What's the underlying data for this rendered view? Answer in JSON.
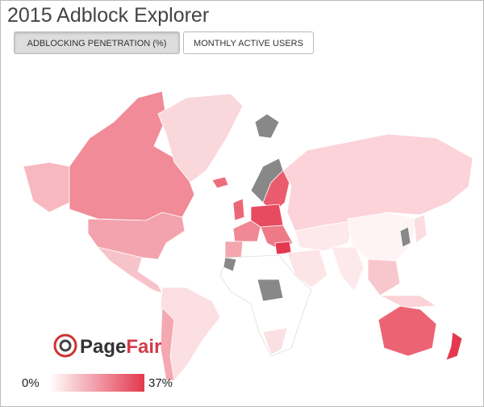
{
  "header": {
    "title": "2015 Adblock Explorer"
  },
  "tabs": [
    {
      "label": "ADBLOCKING PENETRATION (%)",
      "active": true
    },
    {
      "label": "MONTHLY ACTIVE USERS",
      "active": false
    }
  ],
  "logo": {
    "parts": [
      "Page",
      "Fair"
    ]
  },
  "legend": {
    "min": "0%",
    "max": "37%"
  }
}
